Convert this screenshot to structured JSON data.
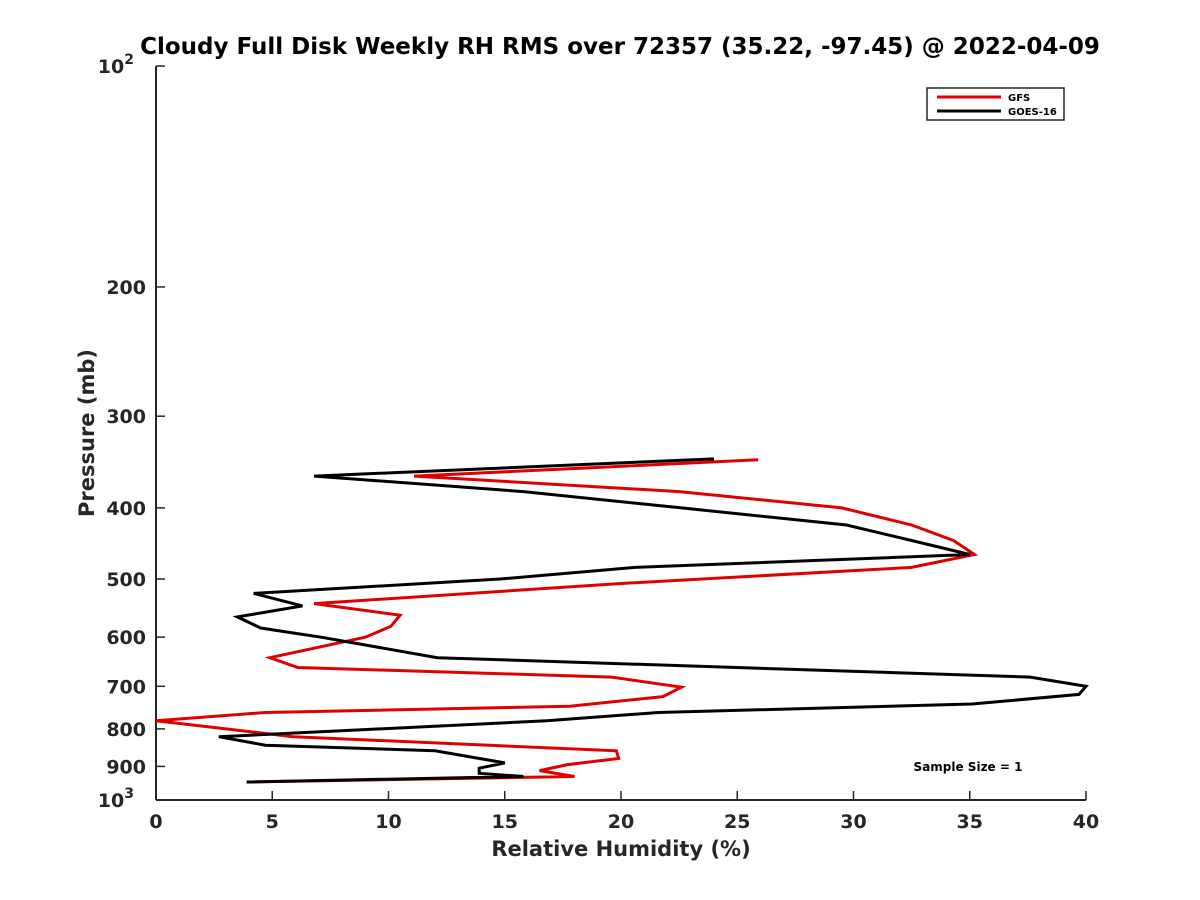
{
  "chart_data": {
    "type": "line",
    "title": "Cloudy Full Disk Weekly RH RMS over 72357 (35.22, -97.45) @ 2022-04-09",
    "xlabel": "Relative Humidity (%)",
    "ylabel": "Pressure (mb)",
    "xlim": [
      0,
      40
    ],
    "ylim": [
      100,
      1000
    ],
    "yscale": "log",
    "y_reversed": true,
    "xticks": [
      0,
      5,
      10,
      15,
      20,
      25,
      30,
      35,
      40
    ],
    "yticks": [
      {
        "value": 100,
        "base": "10",
        "exp": "2"
      },
      {
        "value": 200,
        "label": "200"
      },
      {
        "value": 300,
        "label": "300"
      },
      {
        "value": 400,
        "label": "400"
      },
      {
        "value": 500,
        "label": "500"
      },
      {
        "value": 600,
        "label": "600"
      },
      {
        "value": 700,
        "label": "700"
      },
      {
        "value": 800,
        "label": "800"
      },
      {
        "value": 900,
        "label": "900"
      },
      {
        "value": 1000,
        "base": "10",
        "exp": "3"
      }
    ],
    "grid": false,
    "legend_position": "top-right",
    "annotation": "Sample Size = 1",
    "series": [
      {
        "name": "GFS",
        "color": "#e00000",
        "points": [
          {
            "x": 25.9,
            "y": 344
          },
          {
            "x": 11.1,
            "y": 362
          },
          {
            "x": 22.5,
            "y": 380
          },
          {
            "x": 29.5,
            "y": 400
          },
          {
            "x": 32.5,
            "y": 422
          },
          {
            "x": 34.3,
            "y": 443
          },
          {
            "x": 35.2,
            "y": 463
          },
          {
            "x": 32.5,
            "y": 482
          },
          {
            "x": 20.0,
            "y": 507
          },
          {
            "x": 6.8,
            "y": 540
          },
          {
            "x": 10.5,
            "y": 560
          },
          {
            "x": 10.1,
            "y": 580
          },
          {
            "x": 9.0,
            "y": 600
          },
          {
            "x": 4.9,
            "y": 640
          },
          {
            "x": 6.1,
            "y": 660
          },
          {
            "x": 19.6,
            "y": 680
          },
          {
            "x": 22.6,
            "y": 702
          },
          {
            "x": 21.8,
            "y": 723
          },
          {
            "x": 17.8,
            "y": 745
          },
          {
            "x": 4.7,
            "y": 760
          },
          {
            "x": 0.0,
            "y": 780
          },
          {
            "x": 5.9,
            "y": 820
          },
          {
            "x": 19.8,
            "y": 857
          },
          {
            "x": 19.9,
            "y": 878
          },
          {
            "x": 17.7,
            "y": 895
          },
          {
            "x": 16.5,
            "y": 912
          },
          {
            "x": 18.0,
            "y": 929
          },
          {
            "x": 3.9,
            "y": 945
          }
        ]
      },
      {
        "name": "GOES-16",
        "color": "#000000",
        "points": [
          {
            "x": 24.0,
            "y": 343
          },
          {
            "x": 6.8,
            "y": 362
          },
          {
            "x": 15.8,
            "y": 380
          },
          {
            "x": 22.6,
            "y": 400
          },
          {
            "x": 29.7,
            "y": 422
          },
          {
            "x": 32.5,
            "y": 443
          },
          {
            "x": 35.0,
            "y": 463
          },
          {
            "x": 20.6,
            "y": 482
          },
          {
            "x": 14.8,
            "y": 500
          },
          {
            "x": 4.2,
            "y": 523
          },
          {
            "x": 6.3,
            "y": 544
          },
          {
            "x": 3.5,
            "y": 563
          },
          {
            "x": 4.5,
            "y": 583
          },
          {
            "x": 7.1,
            "y": 600
          },
          {
            "x": 12.1,
            "y": 640
          },
          {
            "x": 37.6,
            "y": 680
          },
          {
            "x": 40.0,
            "y": 700
          },
          {
            "x": 39.7,
            "y": 718
          },
          {
            "x": 35.1,
            "y": 740
          },
          {
            "x": 21.6,
            "y": 760
          },
          {
            "x": 16.8,
            "y": 780
          },
          {
            "x": 2.7,
            "y": 820
          },
          {
            "x": 4.7,
            "y": 842
          },
          {
            "x": 12.0,
            "y": 857
          },
          {
            "x": 15.0,
            "y": 890
          },
          {
            "x": 13.9,
            "y": 905
          },
          {
            "x": 13.9,
            "y": 920
          },
          {
            "x": 15.8,
            "y": 929
          },
          {
            "x": 3.9,
            "y": 945
          }
        ]
      }
    ]
  }
}
